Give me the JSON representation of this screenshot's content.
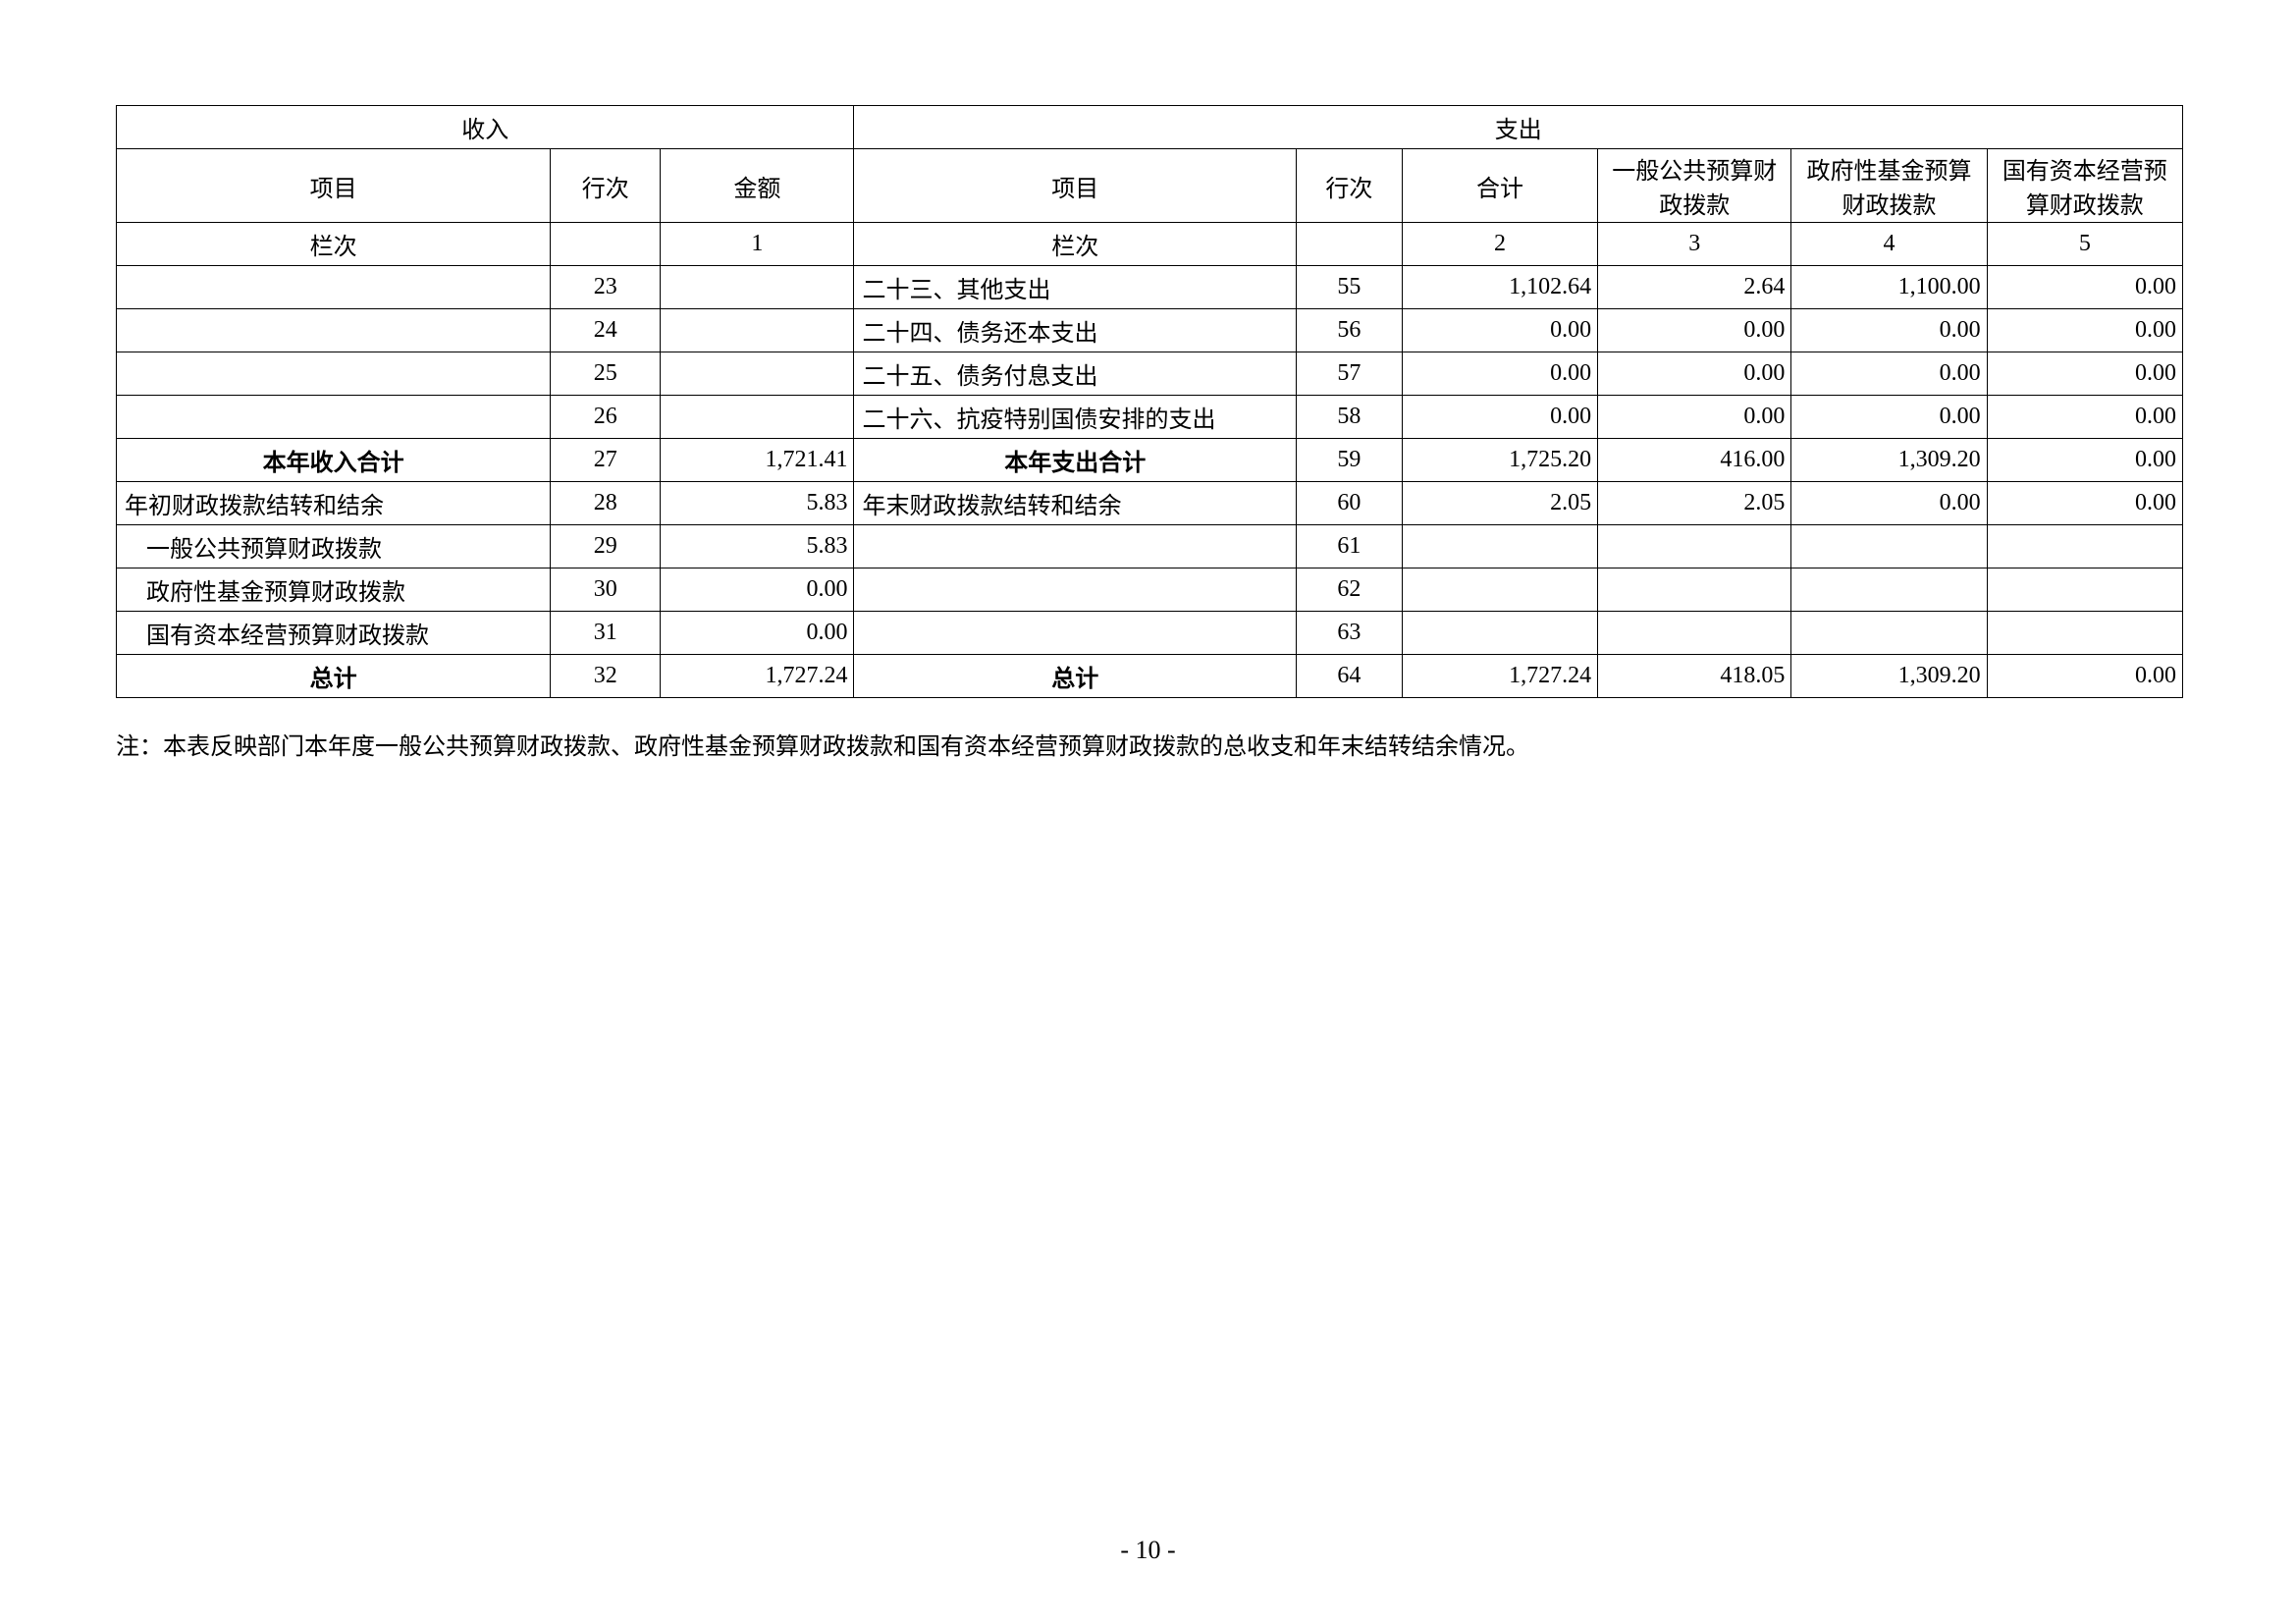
{
  "header": {
    "income_group": "收入",
    "expense_group": "支出",
    "income_item": "项目",
    "income_rownum": "行次",
    "income_amount": "金额",
    "expense_item": "项目",
    "expense_rownum": "行次",
    "expense_total": "合计",
    "col3": "一般公共预算财政拨款",
    "col4": "政府性基金预算财政拨款",
    "col5": "国有资本经营预算财政拨款",
    "column_row_label_in": "栏次",
    "column_row_label_out": "栏次",
    "col_idx_1": "1",
    "col_idx_2": "2",
    "col_idx_3": "3",
    "col_idx_4": "4",
    "col_idx_5": "5"
  },
  "rows": [
    {
      "in_item": "",
      "in_row": "23",
      "in_amt": "",
      "out_item": "二十三、其他支出",
      "out_row": "55",
      "t": "1,102.64",
      "c3": "2.64",
      "c4": "1,100.00",
      "c5": "0.00",
      "bold": false,
      "indent": false
    },
    {
      "in_item": "",
      "in_row": "24",
      "in_amt": "",
      "out_item": "二十四、债务还本支出",
      "out_row": "56",
      "t": "0.00",
      "c3": "0.00",
      "c4": "0.00",
      "c5": "0.00",
      "bold": false,
      "indent": false
    },
    {
      "in_item": "",
      "in_row": "25",
      "in_amt": "",
      "out_item": "二十五、债务付息支出",
      "out_row": "57",
      "t": "0.00",
      "c3": "0.00",
      "c4": "0.00",
      "c5": "0.00",
      "bold": false,
      "indent": false
    },
    {
      "in_item": "",
      "in_row": "26",
      "in_amt": "",
      "out_item": "二十六、抗疫特别国债安排的支出",
      "out_row": "58",
      "t": "0.00",
      "c3": "0.00",
      "c4": "0.00",
      "c5": "0.00",
      "bold": false,
      "indent": false
    },
    {
      "in_item": "本年收入合计",
      "in_row": "27",
      "in_amt": "1,721.41",
      "out_item": "本年支出合计",
      "out_row": "59",
      "t": "1,725.20",
      "c3": "416.00",
      "c4": "1,309.20",
      "c5": "0.00",
      "bold": true,
      "indent": false,
      "center_items": true
    },
    {
      "in_item": "年初财政拨款结转和结余",
      "in_row": "28",
      "in_amt": "5.83",
      "out_item": "年末财政拨款结转和结余",
      "out_row": "60",
      "t": "2.05",
      "c3": "2.05",
      "c4": "0.00",
      "c5": "0.00",
      "bold": false,
      "indent": false
    },
    {
      "in_item": "一般公共预算财政拨款",
      "in_row": "29",
      "in_amt": "5.83",
      "out_item": "",
      "out_row": "61",
      "t": "",
      "c3": "",
      "c4": "",
      "c5": "",
      "bold": false,
      "indent": true
    },
    {
      "in_item": "政府性基金预算财政拨款",
      "in_row": "30",
      "in_amt": "0.00",
      "out_item": "",
      "out_row": "62",
      "t": "",
      "c3": "",
      "c4": "",
      "c5": "",
      "bold": false,
      "indent": true
    },
    {
      "in_item": "国有资本经营预算财政拨款",
      "in_row": "31",
      "in_amt": "0.00",
      "out_item": "",
      "out_row": "63",
      "t": "",
      "c3": "",
      "c4": "",
      "c5": "",
      "bold": false,
      "indent": true
    },
    {
      "in_item": "总计",
      "in_row": "32",
      "in_amt": "1,727.24",
      "out_item": "总计",
      "out_row": "64",
      "t": "1,727.24",
      "c3": "418.05",
      "c4": "1,309.20",
      "c5": "0.00",
      "bold": true,
      "indent": false,
      "center_items": true
    }
  ],
  "note": "注：本表反映部门本年度一般公共预算财政拨款、政府性基金预算财政拨款和国有资本经营预算财政拨款的总收支和年末结转结余情况。",
  "page_number": "- 10 -"
}
